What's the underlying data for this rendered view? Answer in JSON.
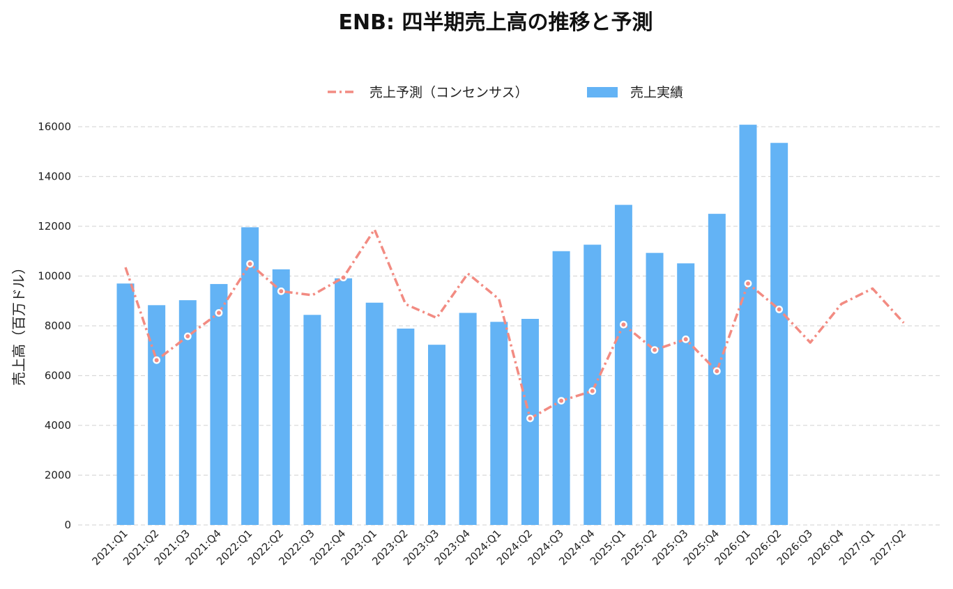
{
  "chart_data": {
    "type": "bar",
    "title": "ENB: 四半期売上高の推移と予測",
    "xlabel": "",
    "ylabel": "売上高（百万ドル）",
    "ylim": [
      0,
      16500
    ],
    "yticks": [
      0,
      2000,
      4000,
      6000,
      8000,
      10000,
      12000,
      14000,
      16000
    ],
    "grid": true,
    "legend_position": "top-center",
    "categories": [
      "2021:Q1",
      "2021:Q2",
      "2021:Q3",
      "2021:Q4",
      "2022:Q1",
      "2022:Q2",
      "2022:Q3",
      "2022:Q4",
      "2023:Q1",
      "2023:Q2",
      "2023:Q3",
      "2023:Q4",
      "2024:Q1",
      "2024:Q2",
      "2024:Q3",
      "2024:Q4",
      "2025:Q1",
      "2025:Q2",
      "2025:Q3",
      "2025:Q4",
      "2026:Q1",
      "2026:Q2",
      "2026:Q3",
      "2026:Q4",
      "2027:Q1",
      "2027:Q2"
    ],
    "series": [
      {
        "name": "売上予測（コンセンサス）",
        "type": "line",
        "color": "#f28b82",
        "values": [
          10350,
          6620,
          7580,
          8520,
          10490,
          9390,
          9230,
          9940,
          11870,
          8870,
          8320,
          10100,
          9070,
          4280,
          4990,
          5380,
          8050,
          7030,
          7460,
          6180,
          9700,
          8660,
          7330,
          8880,
          9500,
          8120
        ],
        "markers": [
          false,
          true,
          true,
          true,
          true,
          true,
          false,
          true,
          false,
          false,
          false,
          false,
          false,
          true,
          true,
          true,
          true,
          true,
          true,
          true,
          true,
          true,
          false,
          false,
          false,
          false
        ]
      },
      {
        "name": "売上実績",
        "type": "bar",
        "color": "#63b3f5",
        "values": [
          9700,
          8830,
          9030,
          9680,
          11960,
          10270,
          8440,
          9910,
          8930,
          7890,
          7240,
          8520,
          8160,
          8280,
          11000,
          11260,
          12860,
          10930,
          10510,
          12500,
          16080,
          15350,
          null,
          null,
          null,
          null
        ]
      }
    ]
  }
}
